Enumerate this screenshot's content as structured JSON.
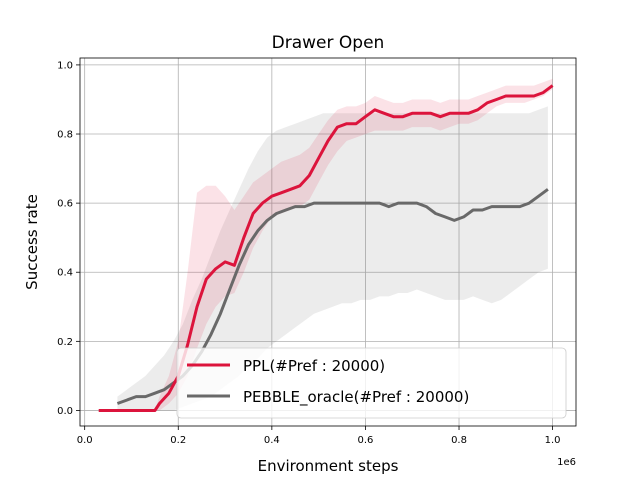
{
  "chart_data": {
    "type": "line",
    "title": "Drawer Open",
    "xlabel": "Environment steps",
    "ylabel": "Success rate",
    "x_offset_label": "1e6",
    "xlim": [
      -0.01,
      1.05
    ],
    "ylim": [
      -0.045,
      1.02
    ],
    "x_ticks": [
      0.0,
      0.2,
      0.4,
      0.6,
      0.8,
      1.0
    ],
    "x_tick_labels": [
      "0.0",
      "0.2",
      "0.4",
      "0.6",
      "0.8",
      "1.0"
    ],
    "y_ticks": [
      0.0,
      0.2,
      0.4,
      0.6,
      0.8,
      1.0
    ],
    "y_tick_labels": [
      "0.0",
      "0.2",
      "0.4",
      "0.6",
      "0.8",
      "1.0"
    ],
    "grid": true,
    "legend_position": "lower-right",
    "series": [
      {
        "name": "PPL(#Pref : 20000)",
        "color": "#dc143c",
        "x": [
          0.03,
          0.06,
          0.1,
          0.15,
          0.16,
          0.18,
          0.2,
          0.22,
          0.24,
          0.26,
          0.28,
          0.3,
          0.32,
          0.34,
          0.36,
          0.38,
          0.4,
          0.42,
          0.44,
          0.46,
          0.48,
          0.5,
          0.52,
          0.54,
          0.56,
          0.58,
          0.6,
          0.62,
          0.64,
          0.66,
          0.68,
          0.7,
          0.72,
          0.74,
          0.76,
          0.78,
          0.8,
          0.82,
          0.84,
          0.86,
          0.88,
          0.9,
          0.92,
          0.94,
          0.96,
          0.98,
          1.0
        ],
        "y": [
          0.0,
          0.0,
          0.0,
          0.0,
          0.02,
          0.05,
          0.1,
          0.19,
          0.3,
          0.38,
          0.41,
          0.43,
          0.42,
          0.5,
          0.57,
          0.6,
          0.62,
          0.63,
          0.64,
          0.65,
          0.68,
          0.73,
          0.78,
          0.82,
          0.83,
          0.83,
          0.85,
          0.87,
          0.86,
          0.85,
          0.85,
          0.86,
          0.86,
          0.86,
          0.85,
          0.86,
          0.86,
          0.86,
          0.87,
          0.89,
          0.9,
          0.91,
          0.91,
          0.91,
          0.91,
          0.92,
          0.94
        ],
        "lower": [
          0.0,
          0.0,
          0.0,
          0.0,
          0.0,
          0.02,
          0.05,
          0.1,
          0.18,
          0.25,
          0.3,
          0.33,
          0.34,
          0.4,
          0.47,
          0.52,
          0.56,
          0.57,
          0.58,
          0.59,
          0.61,
          0.66,
          0.71,
          0.75,
          0.78,
          0.79,
          0.8,
          0.81,
          0.81,
          0.81,
          0.81,
          0.82,
          0.82,
          0.82,
          0.81,
          0.82,
          0.83,
          0.83,
          0.84,
          0.86,
          0.88,
          0.89,
          0.89,
          0.89,
          0.9,
          0.91,
          0.93
        ],
        "upper": [
          0.0,
          0.0,
          0.0,
          0.0,
          0.04,
          0.1,
          0.2,
          0.4,
          0.63,
          0.65,
          0.65,
          0.62,
          0.58,
          0.62,
          0.66,
          0.68,
          0.7,
          0.72,
          0.73,
          0.74,
          0.76,
          0.8,
          0.84,
          0.87,
          0.88,
          0.88,
          0.89,
          0.91,
          0.9,
          0.89,
          0.89,
          0.9,
          0.9,
          0.9,
          0.89,
          0.9,
          0.9,
          0.9,
          0.91,
          0.92,
          0.93,
          0.94,
          0.94,
          0.94,
          0.94,
          0.95,
          0.96
        ]
      },
      {
        "name": "PEBBLE_oracle(#Pref : 20000)",
        "color": "#696969",
        "x": [
          0.07,
          0.09,
          0.11,
          0.13,
          0.15,
          0.17,
          0.19,
          0.21,
          0.23,
          0.25,
          0.27,
          0.29,
          0.31,
          0.33,
          0.35,
          0.37,
          0.39,
          0.41,
          0.43,
          0.45,
          0.47,
          0.49,
          0.51,
          0.53,
          0.55,
          0.57,
          0.59,
          0.61,
          0.63,
          0.65,
          0.67,
          0.69,
          0.71,
          0.73,
          0.75,
          0.77,
          0.79,
          0.81,
          0.83,
          0.85,
          0.87,
          0.89,
          0.91,
          0.93,
          0.95,
          0.97,
          0.99
        ],
        "y": [
          0.02,
          0.03,
          0.04,
          0.04,
          0.05,
          0.06,
          0.08,
          0.1,
          0.13,
          0.17,
          0.22,
          0.28,
          0.35,
          0.42,
          0.48,
          0.52,
          0.55,
          0.57,
          0.58,
          0.59,
          0.59,
          0.6,
          0.6,
          0.6,
          0.6,
          0.6,
          0.6,
          0.6,
          0.6,
          0.59,
          0.6,
          0.6,
          0.6,
          0.59,
          0.57,
          0.56,
          0.55,
          0.56,
          0.58,
          0.58,
          0.59,
          0.59,
          0.59,
          0.59,
          0.6,
          0.62,
          0.64
        ],
        "lower": [
          0.0,
          0.0,
          0.0,
          0.0,
          0.0,
          0.0,
          0.0,
          0.01,
          0.02,
          0.03,
          0.04,
          0.06,
          0.08,
          0.1,
          0.13,
          0.15,
          0.18,
          0.2,
          0.22,
          0.24,
          0.26,
          0.28,
          0.29,
          0.3,
          0.31,
          0.31,
          0.32,
          0.32,
          0.33,
          0.33,
          0.34,
          0.34,
          0.35,
          0.34,
          0.33,
          0.32,
          0.32,
          0.32,
          0.33,
          0.32,
          0.31,
          0.32,
          0.34,
          0.36,
          0.38,
          0.4,
          0.41
        ],
        "upper": [
          0.04,
          0.06,
          0.08,
          0.1,
          0.13,
          0.16,
          0.2,
          0.25,
          0.32,
          0.38,
          0.45,
          0.52,
          0.58,
          0.64,
          0.7,
          0.75,
          0.79,
          0.81,
          0.82,
          0.83,
          0.84,
          0.85,
          0.86,
          0.86,
          0.86,
          0.86,
          0.86,
          0.86,
          0.86,
          0.86,
          0.86,
          0.86,
          0.86,
          0.86,
          0.86,
          0.86,
          0.86,
          0.86,
          0.86,
          0.86,
          0.86,
          0.86,
          0.86,
          0.86,
          0.86,
          0.87,
          0.88
        ]
      }
    ]
  }
}
